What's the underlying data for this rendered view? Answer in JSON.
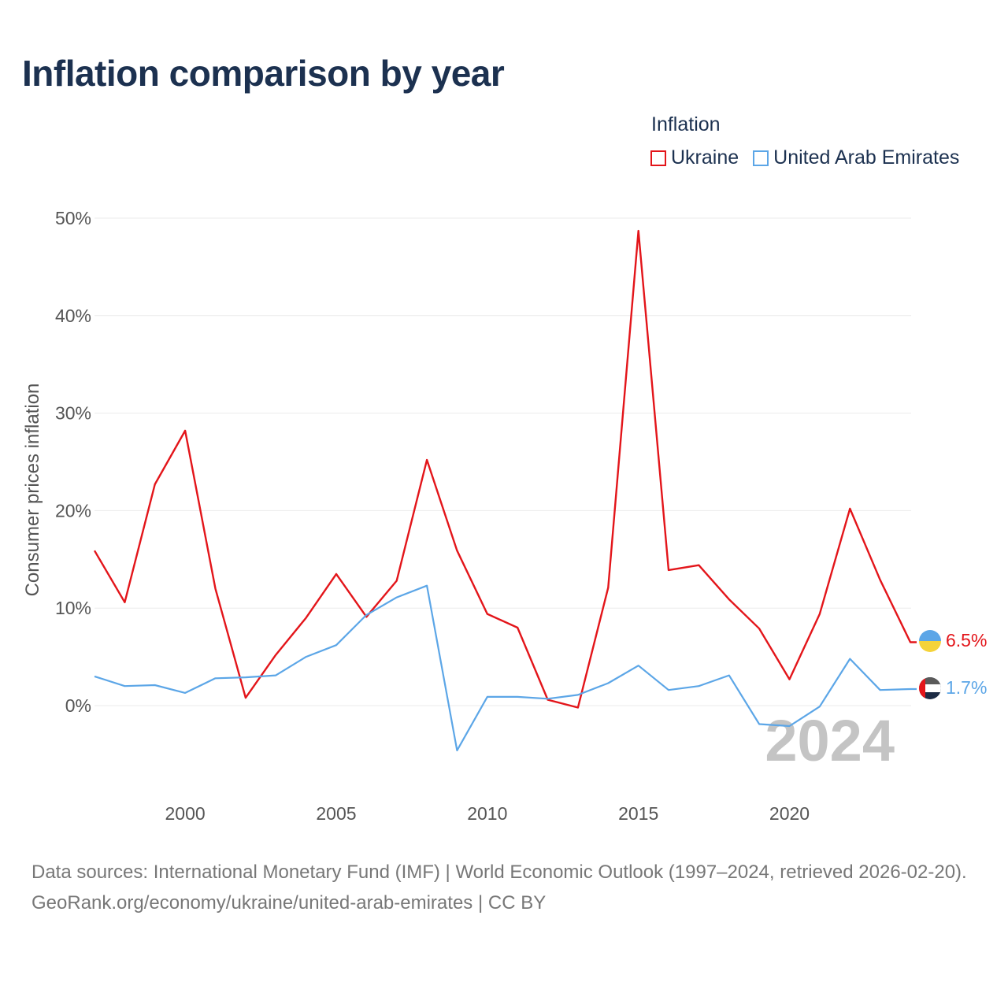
{
  "title": "Inflation comparison by year",
  "legend": {
    "title": "Inflation",
    "ukraine": "Ukraine",
    "uae": "United Arab Emirates"
  },
  "year_watermark": "2024",
  "footer": {
    "line1": "Data sources: International Monetary Fund (IMF) | World Economic Outlook (1997–2024, retrieved 2026-02-20).",
    "line2": "GeoRank.org/economy/ukraine/united-arab-emirates | CC BY"
  },
  "colors": {
    "ukraine": "#e3151a",
    "uae": "#5ca6e7",
    "grid": "#ebebeb"
  },
  "chart_data": {
    "type": "line",
    "title": "Inflation comparison by year",
    "xlabel": "",
    "ylabel": "Consumer prices inflation",
    "xlim": [
      1997,
      2024
    ],
    "ylim": [
      -9,
      52
    ],
    "yticks": [
      0,
      10,
      20,
      30,
      40,
      50
    ],
    "ytick_labels": [
      "0%",
      "10%",
      "20%",
      "30%",
      "40%",
      "50%"
    ],
    "xticks": [
      2000,
      2005,
      2010,
      2015,
      2020
    ],
    "xtick_labels": [
      "2000",
      "2005",
      "2010",
      "2015",
      "2020"
    ],
    "x": [
      1997,
      1998,
      1999,
      2000,
      2001,
      2002,
      2003,
      2004,
      2005,
      2006,
      2007,
      2008,
      2009,
      2010,
      2011,
      2012,
      2013,
      2014,
      2015,
      2016,
      2017,
      2018,
      2019,
      2020,
      2021,
      2022,
      2023,
      2024
    ],
    "series": [
      {
        "name": "Ukraine",
        "color": "#e3151a",
        "end_label": "6.5%",
        "values": [
          15.9,
          10.6,
          22.7,
          28.2,
          12.0,
          0.8,
          5.2,
          9.0,
          13.5,
          9.1,
          12.8,
          25.2,
          15.9,
          9.4,
          8.0,
          0.6,
          -0.2,
          12.1,
          48.7,
          13.9,
          14.4,
          10.9,
          7.9,
          2.7,
          9.4,
          20.2,
          12.9,
          6.5
        ]
      },
      {
        "name": "United Arab Emirates",
        "color": "#5ca6e7",
        "end_label": "1.7%",
        "values": [
          3.0,
          2.0,
          2.1,
          1.3,
          2.8,
          2.9,
          3.1,
          5.0,
          6.2,
          9.3,
          11.1,
          12.3,
          -4.6,
          0.9,
          0.9,
          0.7,
          1.1,
          2.3,
          4.1,
          1.6,
          2.0,
          3.1,
          -1.9,
          -2.1,
          -0.1,
          4.8,
          1.6,
          1.7
        ]
      }
    ]
  }
}
